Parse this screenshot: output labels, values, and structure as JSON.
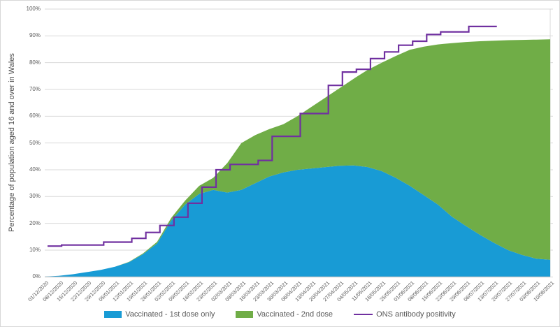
{
  "chart": {
    "y_axis_title": "Percentage of population aged 16 and over in Wales",
    "colors": {
      "first_dose": "#189bd5",
      "second_dose": "#70ad47",
      "ons_line": "#7030a0",
      "gridline": "#d9d9d9",
      "axis_line": "#bfbfbf",
      "tick_text": "#595959"
    },
    "legend": [
      {
        "label": "Vaccinated - 1st dose only",
        "swatch": "area",
        "color": "#189bd5"
      },
      {
        "label": "Vaccinated - 2nd dose",
        "swatch": "area",
        "color": "#70ad47"
      },
      {
        "label": "ONS antibody positivity",
        "swatch": "line",
        "color": "#7030a0"
      }
    ]
  },
  "chart_data": {
    "type": "area",
    "title": "",
    "xlabel": "",
    "ylabel": "Percentage of population aged 16 and over in Wales",
    "ylim": [
      0,
      100
    ],
    "y_tick_step": 10,
    "y_tick_labels": [
      "0%",
      "10%",
      "20%",
      "30%",
      "40%",
      "50%",
      "60%",
      "70%",
      "80%",
      "90%",
      "100%"
    ],
    "grid": true,
    "legend_position": "bottom",
    "x": [
      "01/12/2020",
      "08/12/2020",
      "15/12/2020",
      "22/12/2020",
      "29/12/2020",
      "05/01/2021",
      "12/01/2021",
      "19/01/2021",
      "26/01/2021",
      "02/02/2021",
      "09/02/2021",
      "16/02/2021",
      "23/02/2021",
      "02/03/2021",
      "09/03/2021",
      "16/03/2021",
      "23/03/2021",
      "30/03/2021",
      "06/04/2021",
      "13/04/2021",
      "20/04/2021",
      "27/04/2021",
      "04/05/2021",
      "11/05/2021",
      "18/05/2021",
      "25/05/2021",
      "01/06/2021",
      "08/06/2021",
      "15/06/2021",
      "22/06/2021",
      "29/06/2021",
      "06/07/2021",
      "13/07/2021",
      "20/07/2021",
      "27/07/2021",
      "03/08/2021",
      "10/08/2021"
    ],
    "series": [
      {
        "name": "Vaccinated - 1st dose only",
        "type": "stacked-area",
        "color": "#189bd5",
        "values": [
          0.1,
          0.4,
          1.0,
          1.8,
          2.6,
          3.8,
          5.5,
          8.5,
          12.5,
          21,
          27,
          31,
          32.5,
          31.5,
          32.5,
          35,
          37.5,
          39,
          40,
          40.5,
          41,
          41.5,
          41.6,
          41,
          39.5,
          37,
          34,
          30.5,
          27,
          22.5,
          19,
          15.7,
          12.7,
          10,
          8.2,
          6.8,
          6.4
        ]
      },
      {
        "name": "Vaccinated - 2nd dose",
        "type": "stacked-area",
        "color": "#70ad47",
        "values": [
          0,
          0,
          0,
          0,
          0,
          0,
          0.1,
          0.3,
          0.6,
          1.0,
          1.5,
          3,
          4.5,
          11,
          17.5,
          18,
          17.7,
          18,
          20,
          23,
          26,
          29,
          32.4,
          36.3,
          40.5,
          45.5,
          50.8,
          55.5,
          59.8,
          64.8,
          68.7,
          72.3,
          75.5,
          78.4,
          80.3,
          81.8,
          82.3
        ]
      },
      {
        "name": "ONS antibody positivity",
        "type": "step-line",
        "color": "#7030a0",
        "values": [
          11.5,
          11.9,
          11.9,
          11.9,
          13,
          13,
          14.4,
          16.6,
          19.2,
          22.3,
          27.5,
          33.5,
          40,
          42,
          42,
          43.5,
          52.5,
          52.5,
          61,
          61,
          71.5,
          76.5,
          77.5,
          81.5,
          84,
          86.5,
          88,
          90.5,
          91.5,
          91.5,
          93.5,
          93.5,
          93.5,
          null,
          null,
          null,
          null
        ]
      }
    ]
  }
}
